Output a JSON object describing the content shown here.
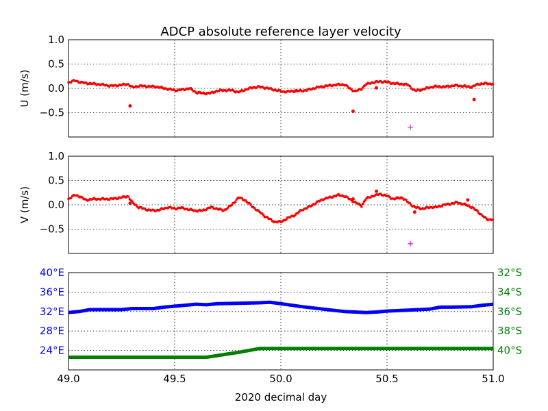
{
  "title": "ADCP absolute reference layer velocity",
  "xlabel": "2020 decimal day",
  "x_ticks": [
    "49.0",
    "49.5",
    "50.0",
    "50.5",
    "51.0"
  ],
  "colors": {
    "adcp_line": "#0000ff",
    "adcp_dots": "#ff0000",
    "outlier_marker": "#bf00bf",
    "lon": "#0000ff",
    "lat": "#008000"
  },
  "chart_data": [
    {
      "type": "line",
      "ylabel": "U (m/s)",
      "y_ticks": [
        "1.0",
        "0.5",
        "0.0",
        "−0.5"
      ],
      "xlim": [
        49.0,
        51.0
      ],
      "ylim": [
        -1.0,
        1.0
      ],
      "grid": true,
      "series": [
        {
          "values_x": [
            49.0,
            49.03,
            49.06,
            49.1,
            49.15,
            49.2,
            49.25,
            49.28,
            49.3,
            49.33,
            49.38,
            49.42,
            49.45,
            49.48,
            49.5,
            49.53,
            49.57,
            49.6,
            49.63,
            49.67,
            49.7,
            49.73,
            49.77,
            49.8,
            49.83,
            49.87,
            49.9,
            49.93,
            49.97,
            50.0,
            50.03,
            50.07,
            50.1,
            50.13,
            50.17,
            50.2,
            50.25,
            50.3,
            50.33,
            50.35,
            50.38,
            50.4,
            50.43,
            50.47,
            50.5,
            50.53,
            50.57,
            50.6,
            50.63,
            50.67,
            50.7,
            50.73,
            50.77,
            50.8,
            50.83,
            50.87,
            50.9,
            50.93,
            50.97,
            51.0
          ],
          "values_y": [
            0.12,
            0.16,
            0.12,
            0.1,
            0.08,
            0.05,
            0.07,
            0.09,
            0.02,
            0.05,
            0.04,
            0.03,
            0.0,
            -0.02,
            -0.04,
            -0.03,
            0.0,
            -0.08,
            -0.1,
            -0.1,
            -0.05,
            -0.04,
            -0.04,
            -0.08,
            -0.03,
            0.02,
            0.03,
            0.01,
            -0.03,
            -0.06,
            -0.07,
            -0.05,
            -0.05,
            -0.03,
            0.02,
            0.04,
            0.07,
            0.08,
            -0.02,
            -0.06,
            -0.01,
            0.08,
            0.12,
            0.14,
            0.13,
            0.1,
            0.09,
            0.07,
            -0.05,
            -0.02,
            0.02,
            0.04,
            0.03,
            0.05,
            0.06,
            0.04,
            0.03,
            0.09,
            0.1,
            0.09
          ]
        }
      ],
      "outliers": {
        "x": [
          49.29,
          50.34,
          50.45,
          50.91,
          50.07
        ],
        "y": [
          -0.36,
          -0.47,
          0.01,
          -0.23,
          -0.05
        ]
      },
      "marker": {
        "x": 50.61,
        "y": -0.8
      }
    },
    {
      "type": "line",
      "ylabel": "V (m/s)",
      "y_ticks": [
        "1.0",
        "0.5",
        "0.0",
        "−0.5"
      ],
      "xlim": [
        49.0,
        51.0
      ],
      "ylim": [
        -1.0,
        1.0
      ],
      "grid": true,
      "series": [
        {
          "values_x": [
            49.0,
            49.03,
            49.05,
            49.08,
            49.12,
            49.16,
            49.2,
            49.25,
            49.28,
            49.3,
            49.33,
            49.37,
            49.4,
            49.43,
            49.47,
            49.5,
            49.53,
            49.57,
            49.6,
            49.63,
            49.67,
            49.7,
            49.73,
            49.77,
            49.8,
            49.83,
            49.87,
            49.9,
            49.93,
            49.97,
            50.0,
            50.03,
            50.07,
            50.1,
            50.13,
            50.17,
            50.2,
            50.23,
            50.27,
            50.3,
            50.33,
            50.35,
            50.38,
            50.4,
            50.43,
            50.47,
            50.5,
            50.53,
            50.57,
            50.6,
            50.63,
            50.67,
            50.7,
            50.73,
            50.77,
            50.8,
            50.83,
            50.87,
            50.9,
            50.93,
            50.97,
            51.0
          ],
          "values_y": [
            0.12,
            0.2,
            0.18,
            0.1,
            0.12,
            0.12,
            0.12,
            0.15,
            0.18,
            0.05,
            -0.05,
            -0.1,
            -0.12,
            -0.1,
            -0.05,
            -0.08,
            -0.06,
            -0.1,
            -0.12,
            -0.12,
            -0.05,
            -0.08,
            -0.12,
            0.0,
            0.15,
            0.1,
            -0.05,
            -0.15,
            -0.25,
            -0.35,
            -0.35,
            -0.28,
            -0.2,
            -0.1,
            -0.05,
            0.05,
            0.12,
            0.15,
            0.2,
            0.18,
            0.1,
            0.05,
            -0.02,
            0.12,
            0.18,
            0.22,
            0.18,
            0.12,
            0.15,
            0.05,
            -0.05,
            -0.08,
            -0.05,
            -0.05,
            0.0,
            0.02,
            0.05,
            0.0,
            -0.05,
            -0.15,
            -0.3,
            -0.3
          ]
        }
      ],
      "outliers": {
        "x": [
          49.29,
          50.34,
          50.45,
          50.63,
          50.88
        ],
        "y": [
          0.03,
          0.12,
          0.28,
          -0.15,
          0.1
        ]
      },
      "marker": {
        "x": 50.61,
        "y": -0.8
      }
    },
    {
      "type": "line",
      "left_ticks": [
        "40°E",
        "36°E",
        "32°E",
        "28°E",
        "24°E"
      ],
      "right_ticks": [
        "32°S",
        "34°S",
        "36°S",
        "38°S",
        "40°S"
      ],
      "xlim": [
        49.0,
        51.0
      ],
      "ylim_left_degE": [
        20,
        40
      ],
      "ylim_right_degS": [
        32,
        42
      ],
      "grid": true,
      "series": [
        {
          "name": "longitude",
          "values_x": [
            49.0,
            49.05,
            49.1,
            49.15,
            49.25,
            49.3,
            49.4,
            49.45,
            49.5,
            49.55,
            49.6,
            49.65,
            49.7,
            49.8,
            49.9,
            49.95,
            50.0,
            50.1,
            50.2,
            50.3,
            50.4,
            50.45,
            50.5,
            50.6,
            50.7,
            50.75,
            50.8,
            50.9,
            50.95,
            51.0
          ],
          "values_y": [
            31.8,
            32.0,
            32.4,
            32.4,
            32.4,
            32.6,
            32.6,
            32.9,
            33.1,
            33.3,
            33.5,
            33.4,
            33.6,
            33.7,
            33.8,
            33.9,
            33.6,
            33.0,
            32.5,
            32.0,
            31.8,
            31.9,
            32.1,
            32.3,
            32.5,
            32.9,
            32.9,
            33.0,
            33.3,
            33.5
          ]
        },
        {
          "name": "latitude",
          "values_x": [
            49.0,
            49.2,
            49.4,
            49.6,
            49.65,
            49.8,
            49.9,
            49.95,
            50.0,
            50.2,
            50.4,
            50.6,
            50.8,
            51.0
          ],
          "values_y": [
            40.7,
            40.7,
            40.7,
            40.7,
            40.7,
            40.2,
            39.8,
            39.8,
            39.8,
            39.8,
            39.8,
            39.8,
            39.8,
            39.8
          ]
        }
      ]
    }
  ]
}
